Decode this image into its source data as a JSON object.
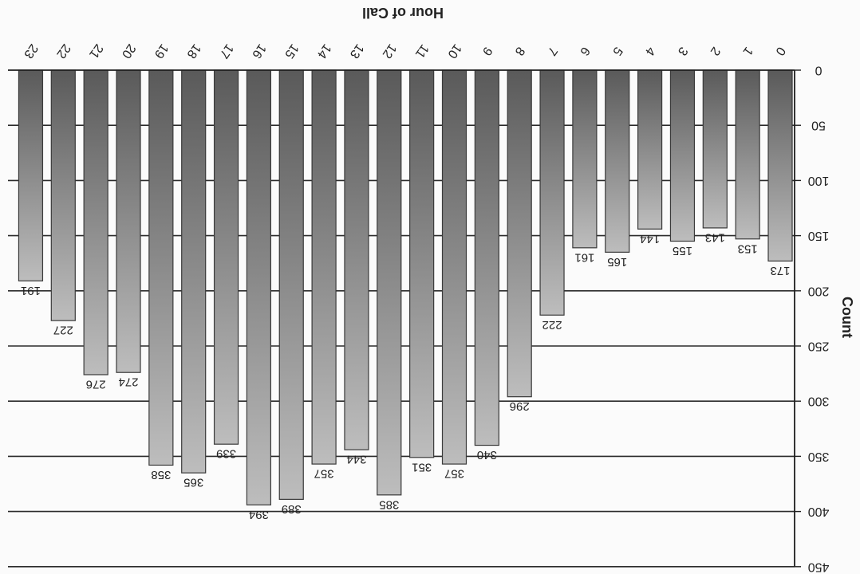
{
  "chart_data": {
    "type": "bar",
    "orientation": "rotated-180",
    "title": "",
    "xlabel": "Hour of Call",
    "ylabel": "Count",
    "categories": [
      "0",
      "1",
      "2",
      "3",
      "4",
      "5",
      "6",
      "7",
      "8",
      "9",
      "10",
      "11",
      "12",
      "13",
      "14",
      "15",
      "16",
      "17",
      "18",
      "19",
      "20",
      "21",
      "22",
      "23"
    ],
    "values": [
      173,
      153,
      143,
      155,
      144,
      165,
      161,
      222,
      296,
      340,
      357,
      351,
      385,
      344,
      357,
      389,
      394,
      339,
      365,
      358,
      274,
      276,
      227,
      191
    ],
    "ylim": [
      0,
      450
    ],
    "yticks": [
      "0",
      "50",
      "100",
      "150",
      "200",
      "250",
      "300",
      "350",
      "400",
      "450"
    ],
    "grid": true,
    "legend": "none",
    "bar_color": "#8f8f8f"
  }
}
